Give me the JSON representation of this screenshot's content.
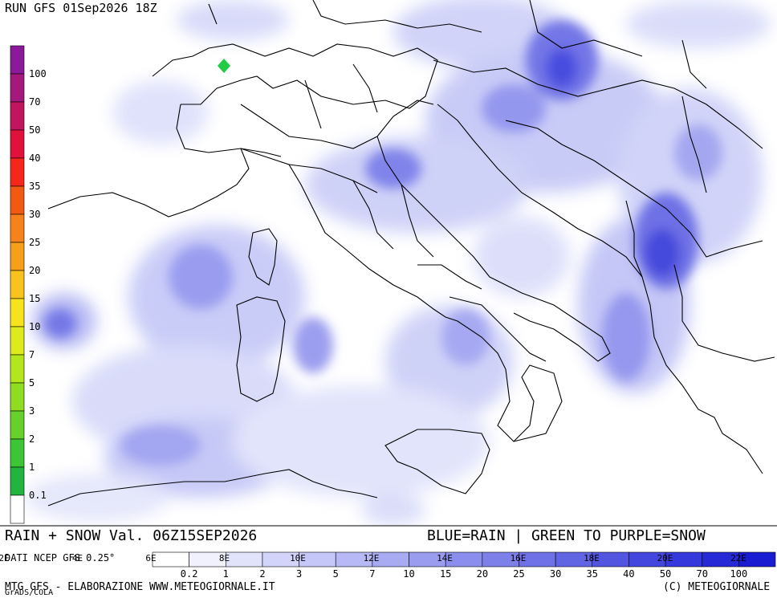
{
  "header": {
    "run_title": "RUN GFS 01Sep2026 18Z"
  },
  "footer": {
    "valid_line": "RAIN + SNOW Val. 06Z15SEP2026",
    "legend_note": "BLUE=RAIN | GREEN TO PURPLE=SNOW",
    "data_source": "DATI NCEP GFS 0.25°",
    "credit_left": "MTG GFS - ELABORAZIONE WWW.METEOGIORNALE.IT",
    "credit_right": "(C) METEOGIORNALE",
    "grads": "GrADS/COLA"
  },
  "snow_scale": {
    "labels": [
      "100",
      "70",
      "50",
      "40",
      "35",
      "30",
      "25",
      "20",
      "15",
      "10",
      "7",
      "5",
      "3",
      "2",
      "1",
      "0.1"
    ],
    "colors": [
      "#8b1a9a",
      "#a3197e",
      "#c2155f",
      "#e0113a",
      "#f5261a",
      "#f25a14",
      "#f5821a",
      "#f5a01a",
      "#f7c31c",
      "#f7e21e",
      "#ddeb1e",
      "#b3e61c",
      "#8fdc22",
      "#66d12a",
      "#3cc534",
      "#21b43e",
      "#ffffff"
    ]
  },
  "rain_scale": {
    "labels": [
      "0.2",
      "1",
      "2",
      "3",
      "5",
      "7",
      "10",
      "15",
      "20",
      "25",
      "30",
      "35",
      "40",
      "50",
      "70",
      "100"
    ],
    "colors": [
      "#ffffff",
      "#f0f1fd",
      "#e1e3fb",
      "#d2d5f9",
      "#c4c7f7",
      "#b6b9f5",
      "#a8abf2",
      "#9a9cef",
      "#8b8eec",
      "#7d80e9",
      "#6f72e6",
      "#6164e3",
      "#5255e0",
      "#4447dd",
      "#3538da",
      "#2629d6",
      "#1a1cd2"
    ]
  },
  "longitude_labels": [
    "2E",
    "4E",
    "6E",
    "8E",
    "10E",
    "12E",
    "14E",
    "16E",
    "18E",
    "20E",
    "22E"
  ]
}
